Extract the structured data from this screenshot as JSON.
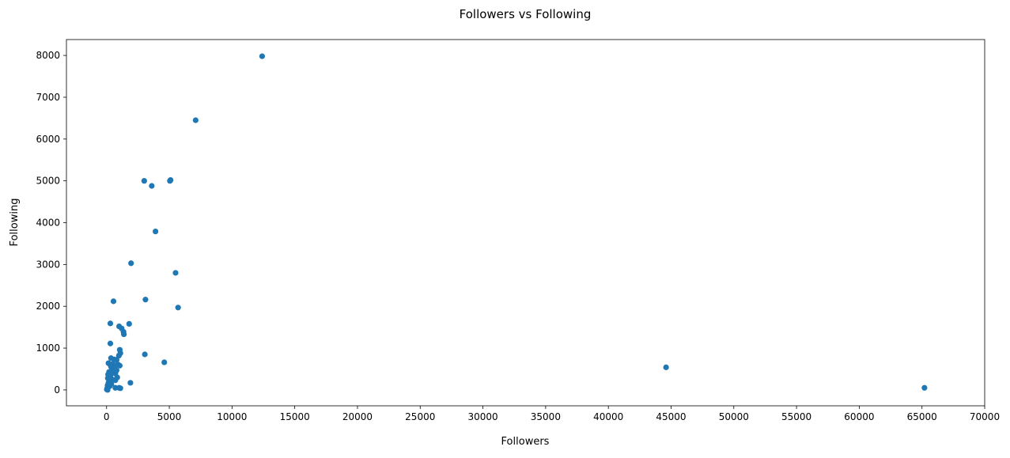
{
  "chart_data": {
    "type": "scatter",
    "title": "Followers vs Following",
    "xlabel": "Followers",
    "ylabel": "Following",
    "xlim": [
      -3200,
      70000
    ],
    "ylim": [
      -380,
      8380
    ],
    "xticks": [
      0,
      5000,
      10000,
      15000,
      20000,
      25000,
      30000,
      35000,
      40000,
      45000,
      50000,
      55000,
      60000,
      65000,
      70000
    ],
    "yticks": [
      0,
      1000,
      2000,
      3000,
      4000,
      5000,
      6000,
      7000,
      8000
    ],
    "grid": false,
    "marker_color": "#1f77b4",
    "series": [
      {
        "points": [
          [
            12400,
            7980
          ],
          [
            7100,
            6450
          ],
          [
            3000,
            5000
          ],
          [
            5100,
            5020
          ],
          [
            5050,
            5000
          ],
          [
            3600,
            4880
          ],
          [
            3900,
            3790
          ],
          [
            1950,
            3030
          ],
          [
            5500,
            2800
          ],
          [
            550,
            2120
          ],
          [
            3100,
            2160
          ],
          [
            5700,
            1970
          ],
          [
            300,
            1590
          ],
          [
            1800,
            1580
          ],
          [
            1000,
            1520
          ],
          [
            1200,
            1470
          ],
          [
            1350,
            1390
          ],
          [
            1380,
            1330
          ],
          [
            300,
            1110
          ],
          [
            1050,
            960
          ],
          [
            1100,
            880
          ],
          [
            3050,
            850
          ],
          [
            980,
            820
          ],
          [
            350,
            760
          ],
          [
            600,
            730
          ],
          [
            800,
            720
          ],
          [
            150,
            640
          ],
          [
            250,
            620
          ],
          [
            900,
            610
          ],
          [
            1050,
            580
          ],
          [
            4600,
            660
          ],
          [
            500,
            620
          ],
          [
            700,
            580
          ],
          [
            350,
            560
          ],
          [
            620,
            520
          ],
          [
            420,
            480
          ],
          [
            800,
            470
          ],
          [
            200,
            430
          ],
          [
            560,
            410
          ],
          [
            700,
            390
          ],
          [
            120,
            370
          ],
          [
            300,
            330
          ],
          [
            850,
            300
          ],
          [
            100,
            280
          ],
          [
            450,
            250
          ],
          [
            200,
            210
          ],
          [
            700,
            230
          ],
          [
            150,
            170
          ],
          [
            1900,
            170
          ],
          [
            380,
            140
          ],
          [
            80,
            110
          ],
          [
            250,
            90
          ],
          [
            120,
            60
          ],
          [
            50,
            40
          ],
          [
            700,
            50
          ],
          [
            1000,
            50
          ],
          [
            1100,
            40
          ],
          [
            20,
            10
          ],
          [
            80,
            0
          ],
          [
            44600,
            540
          ],
          [
            65200,
            50
          ]
        ]
      }
    ]
  }
}
